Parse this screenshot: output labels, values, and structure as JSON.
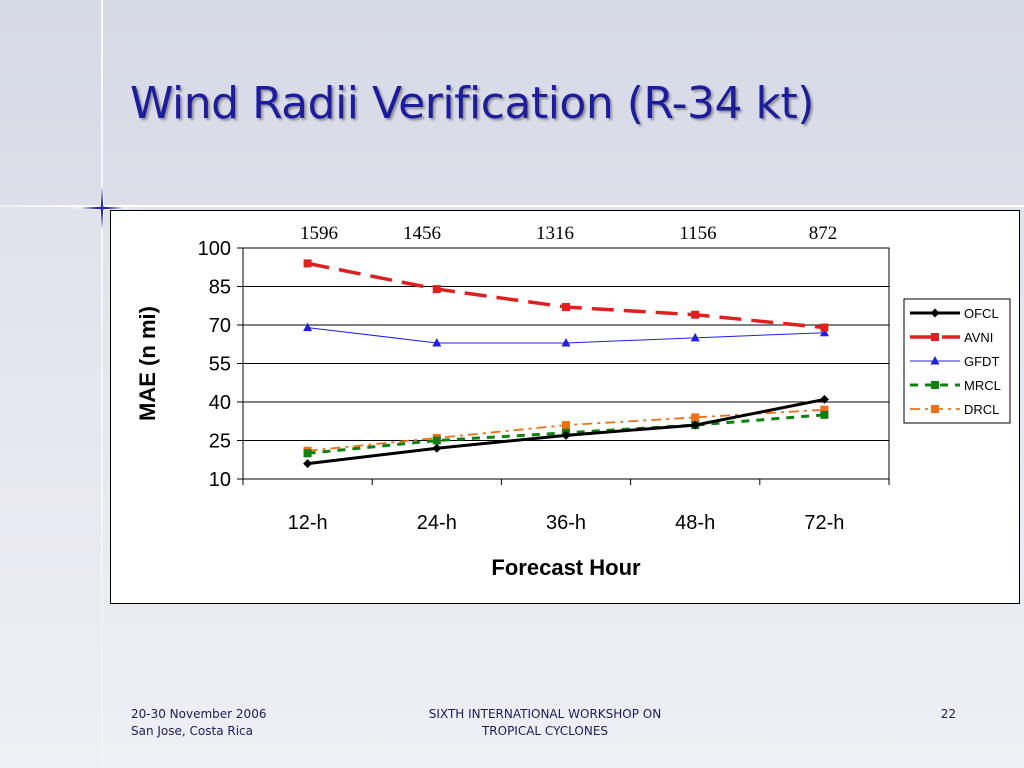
{
  "slide": {
    "title": "Wind Radii Verification (R-34 kt)"
  },
  "footer": {
    "date": "20-30 November 2006",
    "location": "San Jose, Costa Rica",
    "event_line1": "SIXTH INTERNATIONAL WORKSHOP ON",
    "event_line2": "TROPICAL CYCLONES",
    "page_number": "22"
  },
  "colors": {
    "title": "#1c1c9c",
    "OFCL": "#000000",
    "AVNI": "#e02020",
    "GFDT": "#2020e0",
    "MRCL": "#108010",
    "DRCL": "#f07018"
  },
  "chart_data": {
    "type": "line",
    "xlabel": "Forecast Hour",
    "ylabel": "MAE (n mi)",
    "categories": [
      "12-h",
      "24-h",
      "36-h",
      "48-h",
      "72-h"
    ],
    "case_counts": [
      "1596",
      "1456",
      "1316",
      "1156",
      "872"
    ],
    "ylim": [
      10,
      100
    ],
    "yticks": [
      "100",
      "85",
      "70",
      "55",
      "40",
      "25",
      "10"
    ],
    "grid": "horizontal",
    "legend_position": "right",
    "series": [
      {
        "name": "OFCL",
        "values": [
          16,
          22,
          27,
          31,
          41
        ],
        "color": "#000000",
        "marker": "diamond",
        "dash": "solid"
      },
      {
        "name": "AVNI",
        "values": [
          94,
          84,
          77,
          74,
          69
        ],
        "color": "#e02020",
        "marker": "square",
        "dash": "long-dash"
      },
      {
        "name": "GFDT",
        "values": [
          69,
          63,
          63,
          65,
          67
        ],
        "color": "#2020e0",
        "marker": "triangle",
        "dash": "solid"
      },
      {
        "name": "MRCL",
        "values": [
          20,
          25,
          28,
          31,
          35
        ],
        "color": "#108010",
        "marker": "square",
        "dash": "dash"
      },
      {
        "name": "DRCL",
        "values": [
          21,
          26,
          31,
          34,
          37
        ],
        "color": "#f07018",
        "marker": "square",
        "dash": "dash-dot"
      }
    ]
  }
}
